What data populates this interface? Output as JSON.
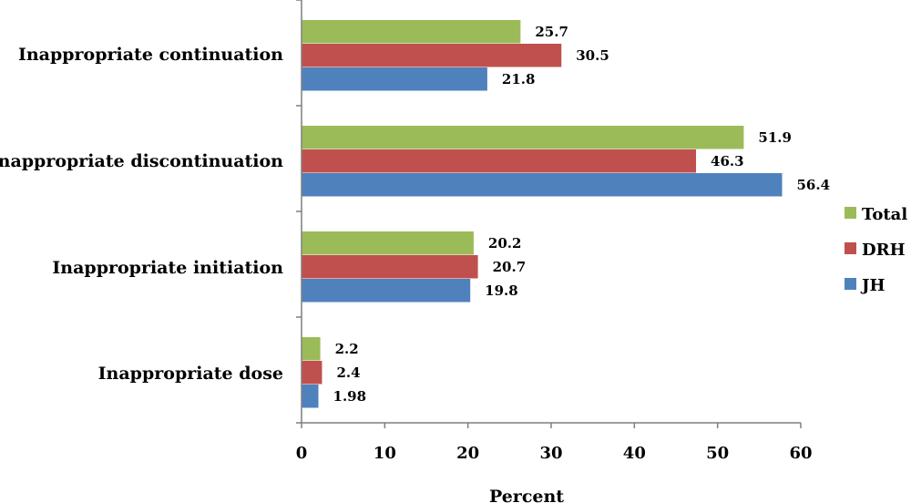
{
  "chart_data": {
    "type": "bar",
    "orientation": "horizontal",
    "title": "",
    "xlabel": "Percent",
    "ylabel": "",
    "xlim": [
      0,
      60
    ],
    "xticks": [
      "0",
      "10",
      "20",
      "30",
      "40",
      "50",
      "60"
    ],
    "grid": false,
    "legend_position": "right",
    "categories": [
      "Inappropriate continuation",
      "Inappropriate discontinuation",
      "Inappropriate initiation",
      "Inappropriate dose"
    ],
    "series": [
      {
        "name": "Total",
        "color": "#9BBB59",
        "values": [
          25.7,
          51.9,
          20.2,
          2.2
        ],
        "labels": [
          "25.7",
          "51.9",
          "20.2",
          "2.2"
        ]
      },
      {
        "name": "DRH",
        "color": "#C0504D",
        "values": [
          30.5,
          46.3,
          20.7,
          2.4
        ],
        "labels": [
          "30.5",
          "46.3",
          "20.7",
          "2.4"
        ]
      },
      {
        "name": "JH",
        "color": "#4F81BD",
        "values": [
          21.8,
          56.4,
          19.8,
          1.98
        ],
        "labels": [
          "21.8",
          "56.4",
          "19.8",
          "1.98"
        ]
      }
    ]
  }
}
